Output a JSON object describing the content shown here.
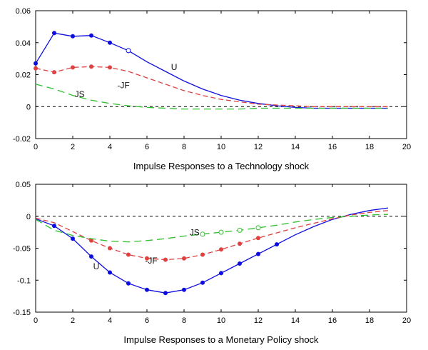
{
  "page": {
    "background": "#ffffff"
  },
  "chart_data": [
    {
      "type": "line",
      "name": "technology-shock",
      "xlabel": "Impulse Responses to a Technology shock",
      "xlim": [
        0,
        20
      ],
      "ylim": [
        -0.02,
        0.06
      ],
      "xticks": [
        0,
        2,
        4,
        6,
        8,
        10,
        12,
        14,
        16,
        18,
        20
      ],
      "xtick_labels": [
        "0",
        "2",
        "4",
        "6",
        "8",
        "10",
        "12",
        "14",
        "16",
        "18",
        "20"
      ],
      "yticks": [
        -0.02,
        0,
        0.02,
        0.04,
        0.06
      ],
      "ytick_labels": [
        "-0.02",
        "0",
        "0.02",
        "0.04",
        "0.06"
      ],
      "grid": false,
      "zero_line": true,
      "legend_position": "none",
      "x": [
        0,
        1,
        2,
        3,
        4,
        5,
        6,
        7,
        8,
        9,
        10,
        11,
        12,
        13,
        14,
        15,
        16,
        17,
        18,
        19
      ],
      "series": [
        {
          "name": "U",
          "label": "U",
          "color": "#0d0de0",
          "style": "solid",
          "dash": "",
          "marker_filled": [
            0,
            1,
            2,
            3,
            4
          ],
          "marker_open": [
            5
          ],
          "values": [
            0.027,
            0.046,
            0.044,
            0.0445,
            0.04,
            0.035,
            0.028,
            0.022,
            0.016,
            0.011,
            0.007,
            0.004,
            0.002,
            0.0005,
            -0.0005,
            -0.001,
            -0.001,
            -0.001,
            -0.001,
            -0.001
          ]
        },
        {
          "name": "JF",
          "label": "-JF",
          "color": "#e04040",
          "style": "dashed",
          "dash": "7 4",
          "marker_filled": [
            0,
            1,
            2,
            3,
            4
          ],
          "marker_open": [],
          "values": [
            0.024,
            0.0215,
            0.0245,
            0.025,
            0.0245,
            0.022,
            0.018,
            0.014,
            0.01,
            0.007,
            0.0045,
            0.003,
            0.0015,
            0.001,
            0.0005,
            0,
            0,
            0,
            0,
            0
          ]
        },
        {
          "name": "JS",
          "label": "JS",
          "color": "#2fbf2f",
          "style": "dashed",
          "dash": "10 6",
          "marker_filled": [],
          "marker_open": [],
          "values": [
            0.014,
            0.011,
            0.007,
            0.004,
            0.002,
            0.0005,
            -0.0005,
            -0.001,
            -0.0015,
            -0.0015,
            -0.0015,
            -0.0015,
            -0.001,
            -0.001,
            -0.001,
            -0.001,
            -0.001,
            -0.001,
            -0.001,
            -0.001
          ]
        }
      ],
      "annotations": [
        {
          "text": "U",
          "x": 7.3,
          "y": 0.023
        },
        {
          "text": "-JF",
          "x": 4.4,
          "y": 0.0115
        },
        {
          "text": "JS",
          "x": 2.1,
          "y": 0.006
        }
      ]
    },
    {
      "type": "line",
      "name": "monetary-policy-shock",
      "xlabel": "Impulse Responses to a Monetary Policy shock",
      "xlim": [
        0,
        20
      ],
      "ylim": [
        -0.15,
        0.05
      ],
      "xticks": [
        0,
        2,
        4,
        6,
        8,
        10,
        12,
        14,
        16,
        18,
        20
      ],
      "xtick_labels": [
        "0",
        "2",
        "4",
        "6",
        "8",
        "10",
        "12",
        "14",
        "16",
        "18",
        "20"
      ],
      "yticks": [
        -0.15,
        -0.1,
        -0.05,
        0,
        0.05
      ],
      "ytick_labels": [
        "-0.15",
        "-0.1",
        "-0.05",
        "0",
        "0.05"
      ],
      "grid": false,
      "zero_line": true,
      "legend_position": "none",
      "x": [
        0,
        1,
        2,
        3,
        4,
        5,
        6,
        7,
        8,
        9,
        10,
        11,
        12,
        13,
        14,
        15,
        16,
        17,
        18,
        19
      ],
      "series": [
        {
          "name": "U",
          "label": "U",
          "color": "#0d0de0",
          "style": "solid",
          "dash": "",
          "marker_filled": [
            1,
            2,
            3,
            4,
            5,
            6,
            7,
            8,
            9,
            10,
            11,
            12,
            13
          ],
          "marker_open": [],
          "values": [
            -0.004,
            -0.015,
            -0.035,
            -0.063,
            -0.088,
            -0.105,
            -0.115,
            -0.12,
            -0.115,
            -0.104,
            -0.089,
            -0.074,
            -0.059,
            -0.044,
            -0.029,
            -0.016,
            -0.005,
            0.003,
            0.009,
            0.013
          ]
        },
        {
          "name": "JF",
          "label": "-JF",
          "color": "#e04040",
          "style": "dashed",
          "dash": "7 4",
          "marker_filled": [
            3,
            4,
            5,
            6,
            7,
            8,
            9,
            10,
            11,
            12
          ],
          "marker_open": [],
          "values": [
            -0.003,
            -0.01,
            -0.024,
            -0.038,
            -0.05,
            -0.06,
            -0.066,
            -0.068,
            -0.066,
            -0.06,
            -0.052,
            -0.043,
            -0.034,
            -0.026,
            -0.018,
            -0.011,
            -0.004,
            0.002,
            0.006,
            0.009
          ]
        },
        {
          "name": "JS",
          "label": "JS",
          "color": "#2fbf2f",
          "style": "dashed",
          "dash": "10 6",
          "marker_filled": [],
          "marker_open": [
            9,
            10,
            11,
            12
          ],
          "values": [
            -0.005,
            -0.022,
            -0.03,
            -0.035,
            -0.039,
            -0.04,
            -0.038,
            -0.035,
            -0.031,
            -0.028,
            -0.025,
            -0.022,
            -0.018,
            -0.014,
            -0.009,
            -0.005,
            -0.002,
            0.0,
            0.002,
            0.003
          ]
        }
      ],
      "annotations": [
        {
          "text": "U",
          "x": 3.1,
          "y": -0.083
        },
        {
          "text": "-JF",
          "x": 5.9,
          "y": -0.074
        },
        {
          "text": "JS",
          "x": 8.3,
          "y": -0.03
        }
      ]
    }
  ]
}
